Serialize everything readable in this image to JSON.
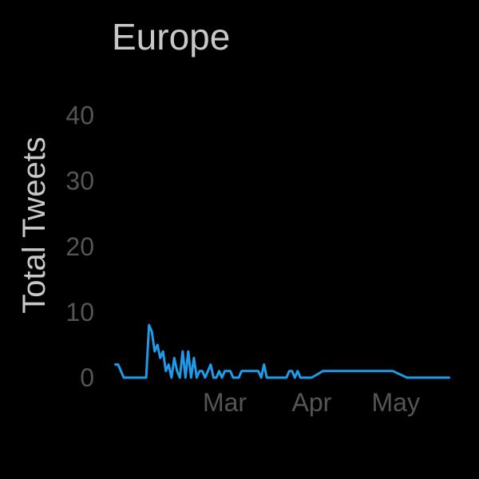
{
  "chart_data": {
    "type": "line",
    "title": "Europe",
    "xlabel": "",
    "ylabel": "Total Tweets",
    "x_tick_labels": [
      "Mar",
      "Apr",
      "May"
    ],
    "x_tick_dates": [
      "2020-03-01",
      "2020-04-01",
      "2020-05-01"
    ],
    "y_ticks": [
      0,
      10,
      20,
      30,
      40
    ],
    "ylim": [
      0,
      43
    ],
    "xlim": [
      "2020-01-21",
      "2020-05-21"
    ],
    "grid": false,
    "line_color": "#1E9BE9",
    "series": [
      {
        "x": [
          "2020-01-22",
          "2020-01-23",
          "2020-01-24",
          "2020-01-25",
          "2020-01-26",
          "2020-01-27",
          "2020-01-28",
          "2020-01-29",
          "2020-01-30",
          "2020-01-31",
          "2020-02-01",
          "2020-02-02",
          "2020-02-03",
          "2020-02-04",
          "2020-02-05",
          "2020-02-06",
          "2020-02-07",
          "2020-02-08",
          "2020-02-09",
          "2020-02-10",
          "2020-02-11",
          "2020-02-12",
          "2020-02-13",
          "2020-02-14",
          "2020-02-15",
          "2020-02-16",
          "2020-02-17",
          "2020-02-18",
          "2020-02-19",
          "2020-02-20",
          "2020-02-21",
          "2020-02-22",
          "2020-02-23",
          "2020-02-24",
          "2020-02-25",
          "2020-02-26",
          "2020-02-27",
          "2020-02-28",
          "2020-02-29",
          "2020-03-01",
          "2020-03-02",
          "2020-03-03",
          "2020-03-04",
          "2020-03-05",
          "2020-03-06",
          "2020-03-07",
          "2020-03-08",
          "2020-03-09",
          "2020-03-10",
          "2020-03-11",
          "2020-03-12",
          "2020-03-13",
          "2020-03-14",
          "2020-03-15",
          "2020-03-16",
          "2020-03-17",
          "2020-03-18",
          "2020-03-19",
          "2020-03-20",
          "2020-03-21",
          "2020-03-22",
          "2020-03-23",
          "2020-03-24",
          "2020-03-25",
          "2020-03-26",
          "2020-03-27",
          "2020-03-28",
          "2020-03-29",
          "2020-03-30",
          "2020-03-31",
          "2020-04-01",
          "2020-04-05",
          "2020-04-10",
          "2020-04-15",
          "2020-04-20",
          "2020-04-25",
          "2020-04-30",
          "2020-05-05",
          "2020-05-10",
          "2020-05-15",
          "2020-05-20"
        ],
        "y": [
          2,
          2,
          1,
          0,
          0,
          0,
          0,
          0,
          0,
          0,
          0,
          0,
          8,
          7,
          4,
          5,
          3,
          4,
          1,
          2,
          0,
          3,
          1,
          0,
          4,
          0,
          4,
          0,
          3,
          0,
          1,
          1,
          0,
          1,
          2,
          0,
          0,
          1,
          0,
          1,
          1,
          1,
          0,
          0,
          0,
          1,
          1,
          1,
          1,
          1,
          1,
          1,
          0,
          2,
          0,
          0,
          0,
          0,
          0,
          0,
          0,
          0,
          1,
          1,
          0,
          1,
          0,
          0,
          0,
          0,
          0,
          1,
          1,
          1,
          1,
          1,
          1,
          0,
          0,
          0,
          0
        ]
      }
    ]
  }
}
